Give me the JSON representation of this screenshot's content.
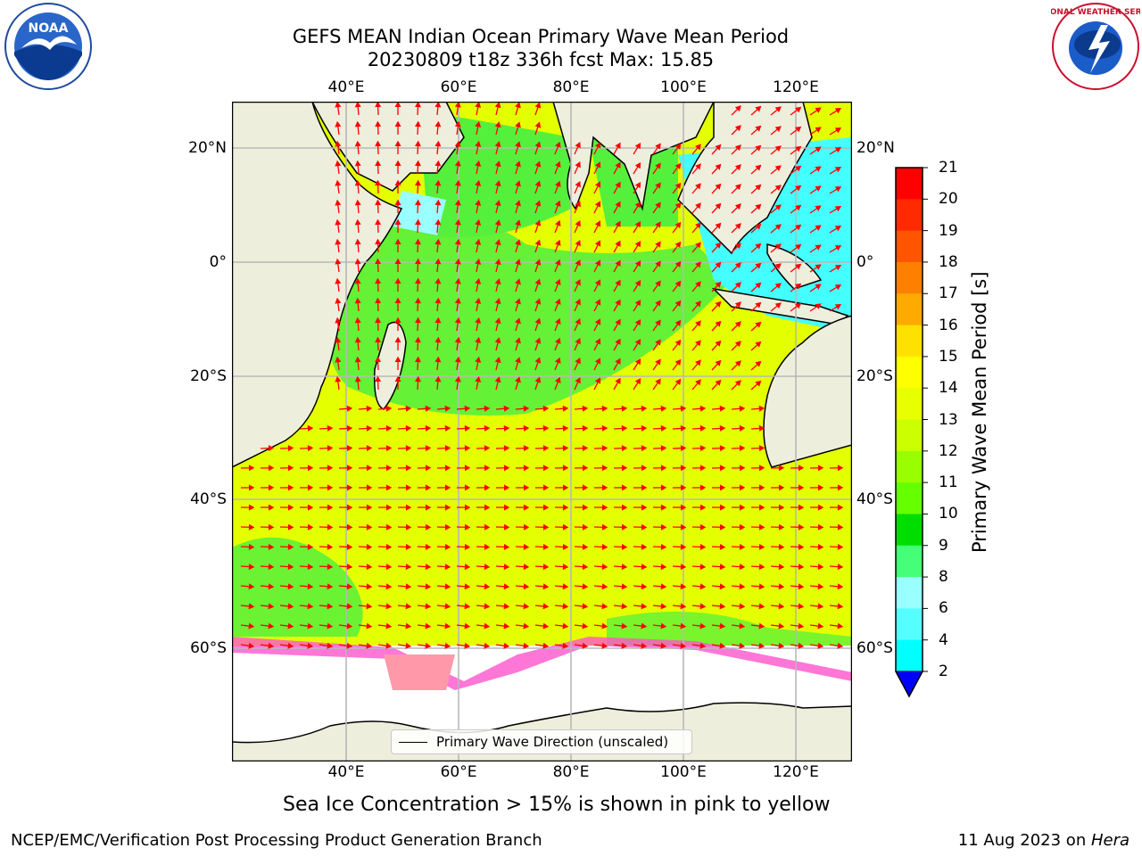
{
  "title_line1": "GEFS MEAN Indian Ocean Primary Wave Mean Period",
  "title_line2": "20230809 t18z 336h fcst   Max: 15.85",
  "logos": {
    "left": "NOAA",
    "right": "NATIONAL WEATHER SERVICE"
  },
  "axes": {
    "lon_ticks": [
      "40°E",
      "60°E",
      "80°E",
      "100°E",
      "120°E"
    ],
    "lat_ticks": [
      "20°N",
      "0°",
      "20°S",
      "40°S",
      "60°S"
    ]
  },
  "colorbar": {
    "label": "Primary Wave Mean Period [s]",
    "ticks": [
      "21",
      "20",
      "19",
      "18",
      "17",
      "16",
      "15",
      "14",
      "13",
      "12",
      "11",
      "10",
      "9",
      "8",
      "6",
      "4",
      "2"
    ],
    "colors": [
      "#ff0000",
      "#ff2a00",
      "#ff5500",
      "#ff8000",
      "#ffaa00",
      "#ffe100",
      "#ffff00",
      "#e8ff00",
      "#ccff00",
      "#99ff00",
      "#66ff00",
      "#00dd00",
      "#44ff77",
      "#99ffff",
      "#55ffff",
      "#00ffff",
      "#00aaff",
      "#0044ff"
    ],
    "extend_color": "#0000ff"
  },
  "legend": {
    "label": "Primary Wave Direction (unscaled)"
  },
  "subtitle": "Sea Ice Concentration > 15% is shown in pink to yellow",
  "footer": {
    "left": "NCEP/EMC/Verification Post Processing Product Generation Branch",
    "right_date": "11 Aug 2023 on ",
    "right_host": "Hera"
  }
}
